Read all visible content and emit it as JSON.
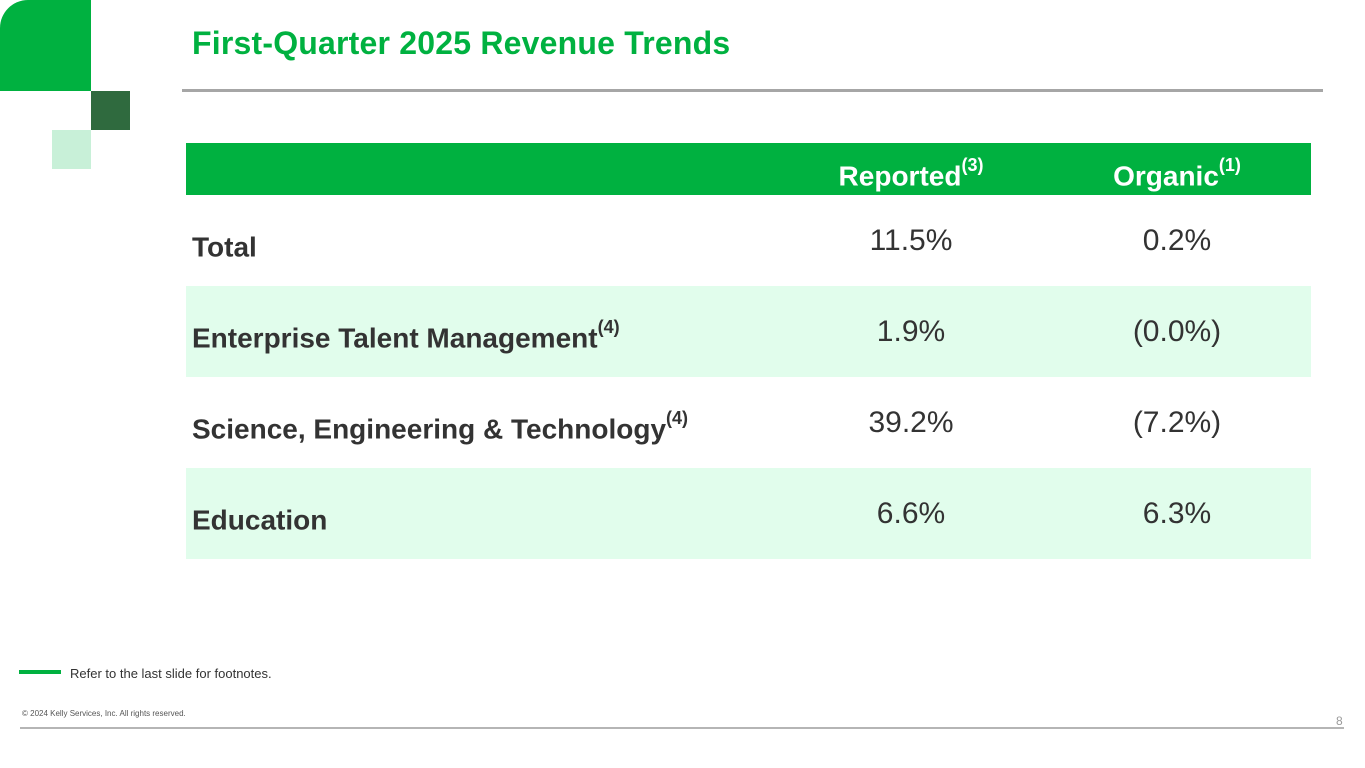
{
  "slide": {
    "title": "First-Quarter 2025 Revenue Trends",
    "page_number": "8"
  },
  "colors": {
    "brand_green": "#00b140",
    "dark_green": "#2f6a3e",
    "light_green": "#c8f0d8",
    "row_shade": "#e1fdec"
  },
  "table": {
    "headers": {
      "reported": "Reported",
      "reported_note": "(3)",
      "organic": "Organic",
      "organic_note": "(1)"
    },
    "rows": [
      {
        "label": "Total",
        "note": "",
        "reported": "11.5%",
        "organic": "0.2%"
      },
      {
        "label": "Enterprise Talent Management",
        "note": "(4)",
        "reported": "1.9%",
        "organic": "(0.0%)"
      },
      {
        "label": "Science, Engineering & Technology",
        "note": "(4)",
        "reported": "39.2%",
        "organic": "(7.2%)"
      },
      {
        "label": "Education",
        "note": "",
        "reported": "6.6%",
        "organic": "6.3%"
      }
    ]
  },
  "footer": {
    "footnote": "Refer to the last slide for footnotes.",
    "copyright": "© 2024 Kelly Services, Inc. All rights reserved."
  }
}
